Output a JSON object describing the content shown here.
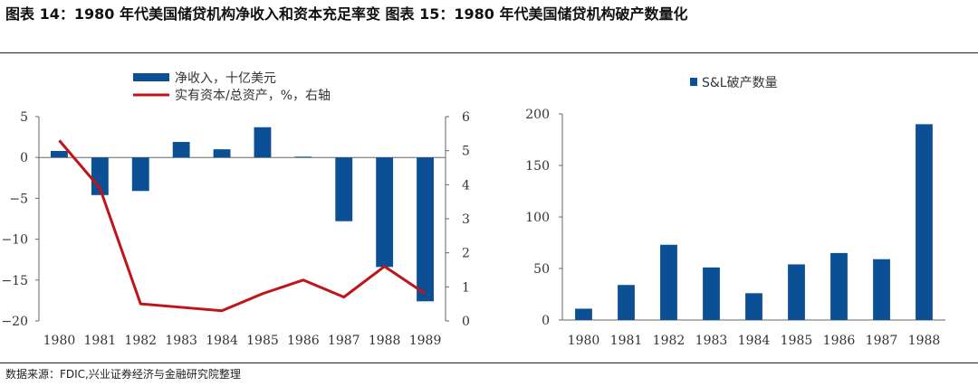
{
  "header": {
    "title": "图表 14：1980 年代美国储贷机构净收入和资本充足率变  图表 15：1980 年代美国储贷机构破产数量化"
  },
  "footer": {
    "source": "数据来源：FDIC,兴业证券经济与金融研究院整理"
  },
  "colors": {
    "bar": "#0b4f94",
    "line": "#c0141c",
    "axis": "#666666"
  },
  "chart_data": [
    {
      "type": "bar+line",
      "categories": [
        "1980",
        "1981",
        "1982",
        "1983",
        "1984",
        "1985",
        "1986",
        "1987",
        "1988",
        "1989"
      ],
      "series": [
        {
          "name": "净收入，十亿美元",
          "type": "bar",
          "axis": "left",
          "values": [
            0.8,
            -4.6,
            -4.1,
            1.9,
            1.0,
            3.7,
            0.1,
            -7.8,
            -13.4,
            -17.6
          ]
        },
        {
          "name": "实有资本/总资产，%，右轴",
          "type": "line",
          "axis": "right",
          "values": [
            5.3,
            3.9,
            0.5,
            0.4,
            0.3,
            0.8,
            1.2,
            0.7,
            1.6,
            0.8
          ]
        }
      ],
      "ylim_left": [
        -20,
        5
      ],
      "yticks_left": [
        "5",
        "0",
        "−5",
        "−10",
        "−15",
        "−20"
      ],
      "ylim_right": [
        0,
        6
      ],
      "yticks_right": [
        "6",
        "5",
        "4",
        "3",
        "2",
        "1",
        "0"
      ],
      "legend_position": "top"
    },
    {
      "type": "bar",
      "categories": [
        "1980",
        "1981",
        "1982",
        "1983",
        "1984",
        "1985",
        "1986",
        "1987",
        "1988"
      ],
      "series": [
        {
          "name": "S&L破产数量",
          "values": [
            11,
            34,
            73,
            51,
            26,
            54,
            65,
            59,
            190
          ]
        }
      ],
      "ylim": [
        0,
        200
      ],
      "yticks": [
        "200",
        "150",
        "100",
        "50",
        "0"
      ],
      "legend_position": "top"
    }
  ]
}
